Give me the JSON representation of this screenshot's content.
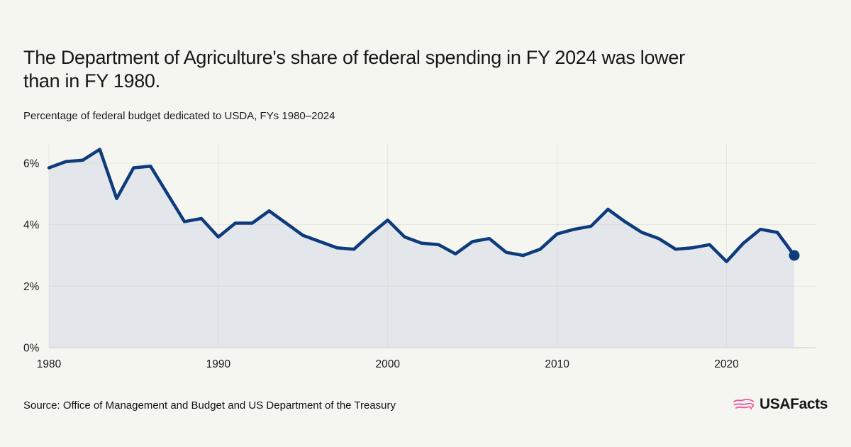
{
  "page": {
    "background": "#F6F6F1"
  },
  "header": {
    "title": "The Department of Agriculture's share of federal spending in FY 2024 was lower than in FY 1980.",
    "title_line1": "The Department of Agriculture's share of federal spending in FY 2024 was lower",
    "title_line2": "than in FY 1980.",
    "subtitle": "Percentage of federal budget dedicated to USDA, FYs 1980–2024"
  },
  "chart_data": {
    "type": "area",
    "title": "The Department of Agriculture's share of federal spending in FY 2024 was lower than in FY 1980.",
    "subtitle": "Percentage of federal budget dedicated to USDA, FYs 1980–2024",
    "unit": "%",
    "x": [
      1980,
      1981,
      1982,
      1983,
      1984,
      1985,
      1986,
      1987,
      1988,
      1989,
      1990,
      1991,
      1992,
      1993,
      1994,
      1995,
      1996,
      1997,
      1998,
      1999,
      2000,
      2001,
      2002,
      2003,
      2004,
      2005,
      2006,
      2007,
      2008,
      2009,
      2010,
      2011,
      2012,
      2013,
      2014,
      2015,
      2016,
      2017,
      2018,
      2019,
      2020,
      2021,
      2022,
      2023,
      2024
    ],
    "values": [
      5.85,
      6.05,
      6.1,
      6.45,
      4.85,
      5.85,
      5.9,
      5.0,
      4.1,
      4.2,
      3.6,
      4.05,
      4.05,
      4.45,
      4.05,
      3.65,
      3.45,
      3.25,
      3.2,
      3.7,
      4.15,
      3.6,
      3.4,
      3.35,
      3.05,
      3.45,
      3.55,
      3.1,
      3.0,
      3.2,
      3.7,
      3.85,
      3.95,
      4.5,
      4.1,
      3.75,
      3.55,
      3.2,
      3.25,
      3.35,
      2.8,
      3.4,
      3.85,
      3.75,
      3.0
    ],
    "xlabel": "",
    "ylabel": "",
    "ylim": [
      0,
      6.6
    ],
    "yticks": [
      0,
      2,
      4,
      6
    ],
    "ytick_labels": [
      "0%",
      "2%",
      "4%",
      "6%"
    ],
    "xticks": [
      1980,
      1990,
      2000,
      2010,
      2020
    ],
    "grid": true,
    "legend": false,
    "end_dot_year": 2024,
    "end_dot_value": 3.0,
    "line_color": "#0D3B7C",
    "fill_color": "#E3E6EB",
    "grid_color": "#D7D7D2",
    "axis_color": "#CFCFC8"
  },
  "footer": {
    "source": "Source: Office of Management and Budget and US Department of the Treasury",
    "brand_text": "USAFacts",
    "brand_icon": "usafacts-map-icon",
    "brand_icon_color": "#F2549B"
  }
}
